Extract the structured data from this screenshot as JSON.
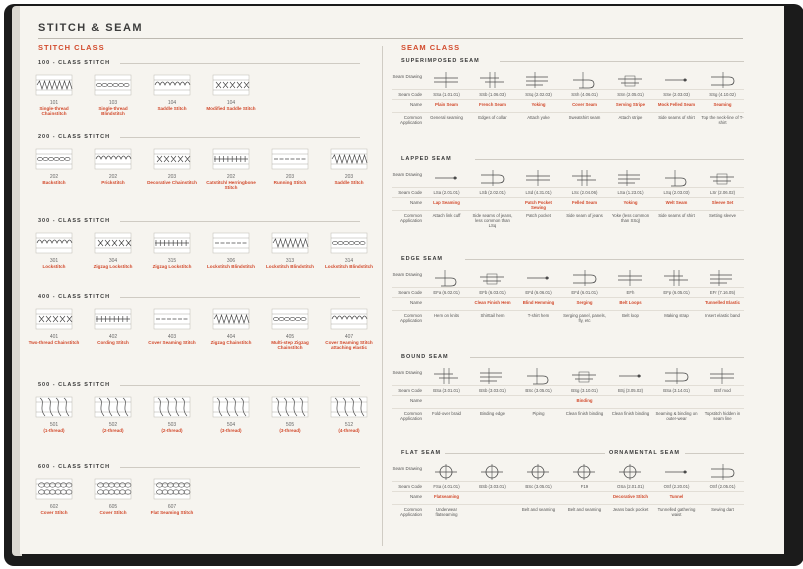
{
  "title": "STITCH & SEAM",
  "stitch_class": {
    "heading": "STITCH CLASS",
    "classes": [
      {
        "label": "100 - CLASS STITCH",
        "items": [
          {
            "num": "101",
            "name": "Single-thread Chainstitch"
          },
          {
            "num": "103",
            "name": "Single-thread Blindstitch"
          },
          {
            "num": "104",
            "name": "Saddle Stitch"
          },
          {
            "num": "104",
            "name": "Modified Saddle Stitch"
          }
        ]
      },
      {
        "label": "200 - CLASS STITCH",
        "items": [
          {
            "num": "202",
            "name": "Backstitch"
          },
          {
            "num": "202",
            "name": "Prickstitch"
          },
          {
            "num": "203",
            "name": "Decorative Chainstitch"
          },
          {
            "num": "202",
            "name": "Catstitch/ Herringbone Stitch"
          },
          {
            "num": "203",
            "name": "Running Stitch"
          },
          {
            "num": "203",
            "name": "Saddle Stitch"
          }
        ]
      },
      {
        "label": "300 - CLASS STITCH",
        "items": [
          {
            "num": "301",
            "name": "Lockstitch"
          },
          {
            "num": "304",
            "name": "Zigzag Lockstitch"
          },
          {
            "num": "315",
            "name": "Zigzag Lockstitch"
          },
          {
            "num": "306",
            "name": "Lockstitch Blindstitch"
          },
          {
            "num": "313",
            "name": "Lockstitch Blindstitch"
          },
          {
            "num": "314",
            "name": "Lockstitch Blindstitch"
          }
        ]
      },
      {
        "label": "400 - CLASS STITCH",
        "items": [
          {
            "num": "401",
            "name": "Two-thread Chainstitch"
          },
          {
            "num": "402",
            "name": "Cording Stitch"
          },
          {
            "num": "403",
            "name": "Cover Seaming Stitch"
          },
          {
            "num": "404",
            "name": "Zigzag Chainstitch"
          },
          {
            "num": "405",
            "name": "Multi-step Zigzag Chainstitch"
          },
          {
            "num": "407",
            "name": "Cover Seaming Stitch attaching elastic"
          }
        ]
      },
      {
        "label": "500 - CLASS STITCH",
        "items": [
          {
            "num": "501",
            "name": "(1-thread)"
          },
          {
            "num": "502",
            "name": "(2-thread)"
          },
          {
            "num": "503",
            "name": "(2-thread)"
          },
          {
            "num": "504",
            "name": "(3-thread)"
          },
          {
            "num": "505",
            "name": "(3-thread)"
          },
          {
            "num": "512",
            "name": "(4-thread)"
          }
        ]
      },
      {
        "label": "600 - CLASS STITCH",
        "items": [
          {
            "num": "602",
            "name": "Cover Stitch"
          },
          {
            "num": "605",
            "name": "Cover Stitch"
          },
          {
            "num": "607",
            "name": "Flat Seaming Stitch"
          }
        ]
      }
    ]
  },
  "seam_class": {
    "heading": "SEAM CLASS",
    "row_labels": {
      "drawing": "Seam Drawing",
      "code": "Seam Code",
      "name": "Name",
      "app": "Common Application"
    },
    "groups": [
      {
        "label": "SUPERIMPOSED SEAM",
        "columns": [
          {
            "code": "SSa (1.01.01)",
            "name": "Plain Seam",
            "app": "General seaming"
          },
          {
            "code": "SSb (1.06.03)",
            "name": "French Seam",
            "app": "Edges of collar"
          },
          {
            "code": "SSq (2.02.03)",
            "name": "Yoking",
            "app": "Attach yoke"
          },
          {
            "code": "SSh (4.06.01)",
            "name": "Cover Seam",
            "app": "Sweatshirt seam"
          },
          {
            "code": "SSn (2.05.01)",
            "name": "Serving Stripe",
            "app": "Attach stripe"
          },
          {
            "code": "SSe (2.03.03)",
            "name": "Mock Felled Seam",
            "app": "Side seams of shirt"
          },
          {
            "code": "SSg (4.10.02)",
            "name": "Seaming",
            "app": "Top the neck-line of T-shirt"
          }
        ]
      },
      {
        "label": "LAPPED SEAM",
        "columns": [
          {
            "code": "LSa (2.01.01)",
            "name": "Lap Seaming",
            "app": "Attach link cuff"
          },
          {
            "code": "LSb (2.02.01)",
            "name": "",
            "app": "Side seams of jeans, less common than LSq"
          },
          {
            "code": "LSd (4.31.01)",
            "name": "Patch Pocket Sewing",
            "app": "Patch pocket"
          },
          {
            "code": "LSc (2.04.06)",
            "name": "Felled Seam",
            "app": "Side seam of jeans"
          },
          {
            "code": "LSa (1.23.01)",
            "name": "Yoking",
            "app": "Yoke (less common than SSq)"
          },
          {
            "code": "LSq (2.03.03)",
            "name": "Welt Seam",
            "app": "Side seams of shirt"
          },
          {
            "code": "LSr (2.06.02)",
            "name": "Sleeve Set",
            "app": "Setting sleeve"
          }
        ]
      },
      {
        "label": "EDGE SEAM",
        "columns": [
          {
            "code": "EFa (6.02.01)",
            "name": "",
            "app": "Hem on knits"
          },
          {
            "code": "EFb (6.03.01)",
            "name": "Clean Finish Hem",
            "app": "Shirttail hem"
          },
          {
            "code": "EFd (6.06.01)",
            "name": "Blind Hemming",
            "app": "T-shirt hem"
          },
          {
            "code": "EFd (6.01.01)",
            "name": "Serging",
            "app": "Serging panel, panels, fly, etc"
          },
          {
            "code": "EFh",
            "name": "Belt Loops",
            "app": "Belt loop"
          },
          {
            "code": "EFp (6.05.01)",
            "name": "",
            "app": "Making strap"
          },
          {
            "code": "EFr (7.16.05)",
            "name": "Tunnelled Elastic",
            "app": "Insert elastic band"
          }
        ]
      },
      {
        "label": "BOUND SEAM",
        "columns": [
          {
            "code": "BSa (3.01.01)",
            "name": "",
            "app": "Fold-over braid"
          },
          {
            "code": "BSb (3.03.01)",
            "name": "",
            "app": "Binding edge"
          },
          {
            "code": "BSc (3.05.01)",
            "name": "",
            "app": "Piping"
          },
          {
            "code": "BSg (3.10.01)",
            "name": "Binding",
            "app": "Clean finish binding"
          },
          {
            "code": "BSj (3.05.02)",
            "name": "",
            "app": "Clean finish binding"
          },
          {
            "code": "BSa (3.14.01)",
            "name": "",
            "app": "Seaming & binding on outer-wear"
          },
          {
            "code": "BSf mod",
            "name": "",
            "app": "Topstitch hidden in seam line"
          }
        ]
      },
      {
        "label": "FLAT SEAM",
        "columns": [
          {
            "code": "FSa (4.01.01)",
            "name": "Flatseaming",
            "app": "Underwear flatseaming"
          },
          {
            "code": "BSb (3.03.01)",
            "name": "",
            "app": ""
          },
          {
            "code": "BSc (3.05.01)",
            "name": "",
            "app": "Belt and seaming"
          },
          {
            "code": "F19",
            "name": "",
            "app": "Belt and seaming"
          }
        ]
      },
      {
        "label": "ORNAMENTAL SEAM",
        "columns": [
          {
            "code": "OSa (2.01.01)",
            "name": "Decorative Stitch",
            "app": "Jeans back pocket"
          },
          {
            "code": "OSf (2.20.01)",
            "name": "Tunnel",
            "app": "Tunnelled gathering waist"
          },
          {
            "code": "OSf (2.05.01)",
            "name": "",
            "app": "Sewing dart"
          }
        ]
      }
    ]
  },
  "colors": {
    "accent": "#d24a2c",
    "ink": "#3a3a3a",
    "paper": "#f6f4ef"
  }
}
